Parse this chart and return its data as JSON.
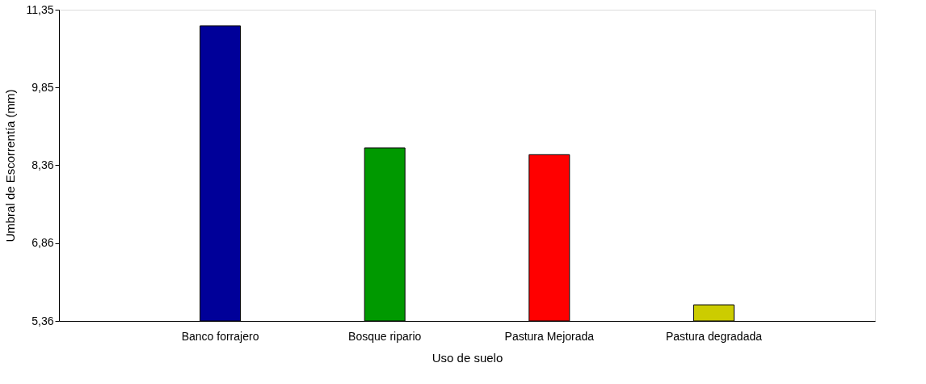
{
  "chart_data": {
    "type": "bar",
    "categories": [
      "Banco forrajero",
      "Bosque ripario",
      "Pastura Mejorada",
      "Pastura degradada"
    ],
    "values": [
      11.04,
      8.69,
      8.56,
      5.67
    ],
    "colors": [
      "#000099",
      "#009900",
      "#ff0000",
      "#cccc00"
    ],
    "xlabel": "Uso de suelo",
    "ylabel": "Umbral de Escorrentía (mm)",
    "ylim": [
      5.36,
      11.35
    ],
    "yticks": [
      {
        "value": 5.36,
        "label": "5,36"
      },
      {
        "value": 6.86,
        "label": "6,86"
      },
      {
        "value": 8.36,
        "label": "8,36"
      },
      {
        "value": 9.85,
        "label": "9,85"
      },
      {
        "value": 11.35,
        "label": "11,35"
      }
    ],
    "grid": false,
    "legend": false
  }
}
